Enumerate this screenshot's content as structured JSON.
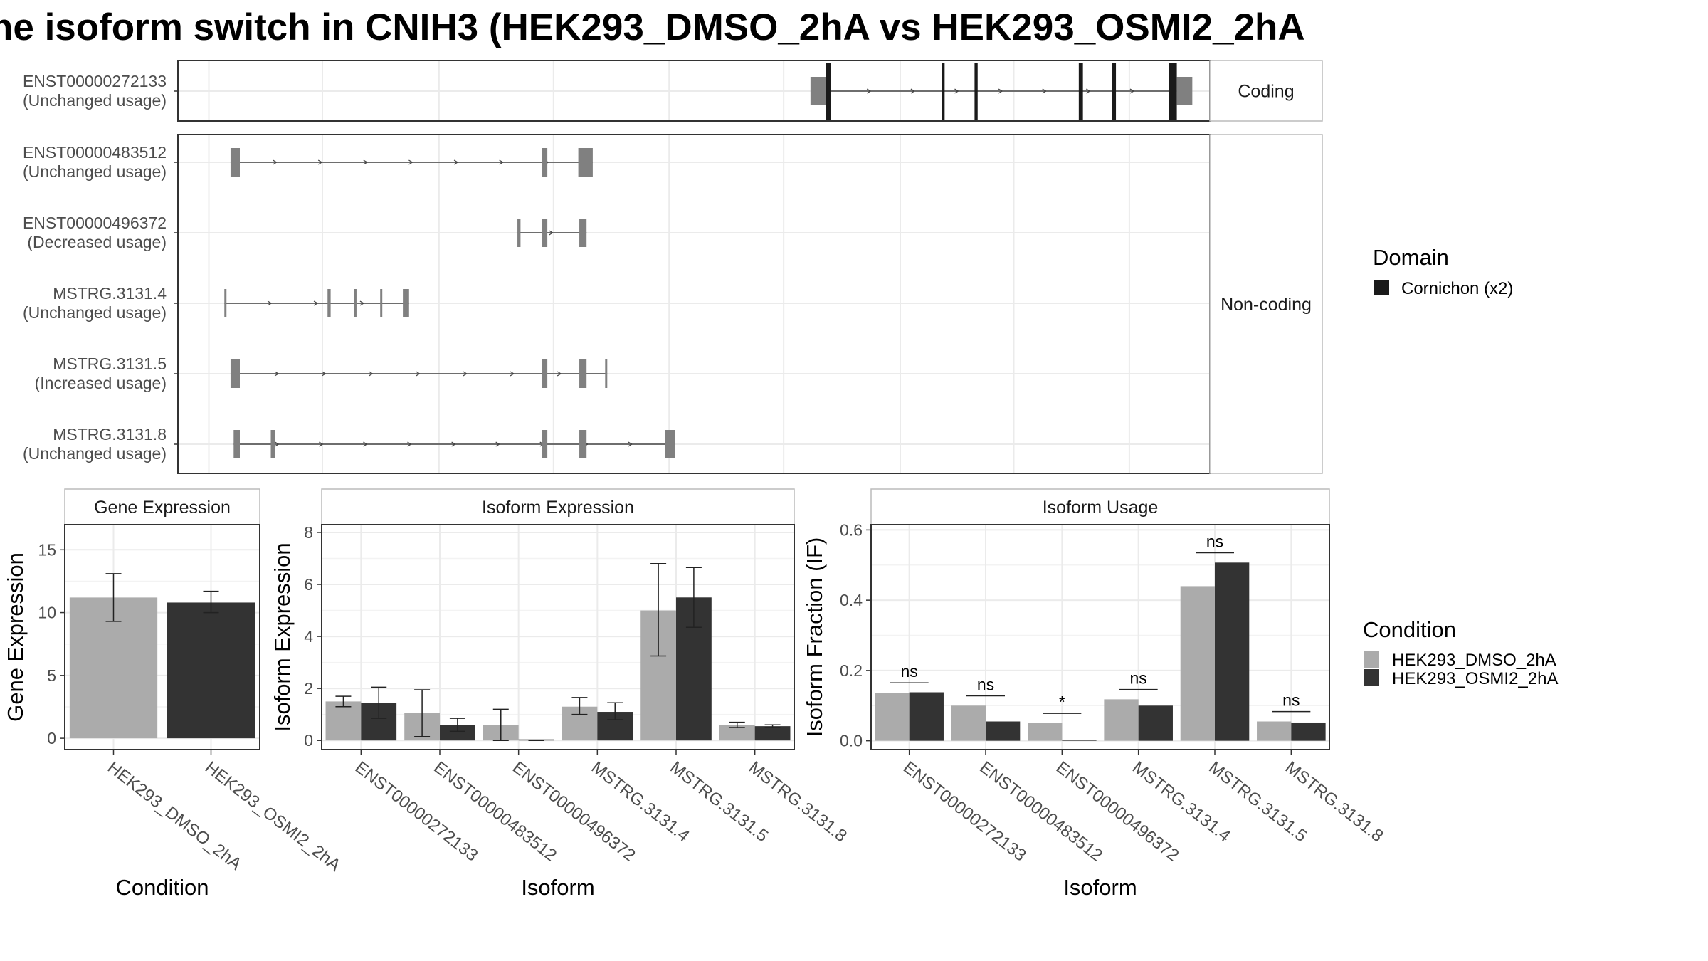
{
  "title": "ne isoform switch in CNIH3 (HEK293_DMSO_2hA vs HEK293_OSMI2_2hA",
  "colors": {
    "dmso": "#ababab",
    "osmi2": "#333333",
    "exon": "#808080",
    "domain": "#1a1a1a",
    "grid": "#ebebeb",
    "border": "#333333",
    "strip_border": "#bbbbbb"
  },
  "legends": {
    "domain": {
      "title": "Domain",
      "items": [
        {
          "label": "Cornichon (x2)",
          "color": "#1a1a1a"
        }
      ]
    },
    "condition": {
      "title": "Condition",
      "items": [
        {
          "label": "HEK293_DMSO_2hA",
          "color": "#ababab"
        },
        {
          "label": "HEK293_OSMI2_2hA",
          "color": "#333333"
        }
      ]
    }
  },
  "chart_data": [
    {
      "type": "gene-structure",
      "x_range": [
        0,
        1
      ],
      "facets": [
        {
          "label": "Coding",
          "tracks": [
            0
          ]
        },
        {
          "label": "Non-coding",
          "tracks": [
            1,
            2,
            3,
            4,
            5
          ]
        }
      ],
      "tracks": [
        {
          "id": "ENST00000272133",
          "status": "(Unchanged usage)",
          "line": [
            0.628,
            0.968
          ],
          "exons": [
            [
              0.613,
              0.628
            ],
            [
              0.628,
              0.633,
              "cds"
            ],
            [
              0.74,
              0.743,
              "cds"
            ],
            [
              0.772,
              0.775,
              "cds"
            ],
            [
              0.873,
              0.877,
              "cds"
            ],
            [
              0.905,
              0.909,
              "cds"
            ],
            [
              0.96,
              0.968,
              "cds"
            ],
            [
              0.968,
              0.983
            ]
          ]
        },
        {
          "id": "ENST00000483512",
          "status": "(Unchanged usage)",
          "line": [
            0.051,
            0.402
          ],
          "exons": [
            [
              0.051,
              0.06
            ],
            [
              0.353,
              0.358
            ],
            [
              0.388,
              0.402
            ]
          ]
        },
        {
          "id": "ENST00000496372",
          "status": "(Decreased usage)",
          "line": [
            0.329,
            0.396
          ],
          "exons": [
            [
              0.329,
              0.332
            ],
            [
              0.353,
              0.358
            ],
            [
              0.389,
              0.396
            ]
          ]
        },
        {
          "id": "MSTRG.3131.4",
          "status": "(Unchanged usage)",
          "line": [
            0.045,
            0.224
          ],
          "exons": [
            [
              0.045,
              0.046
            ],
            [
              0.145,
              0.148
            ],
            [
              0.171,
              0.173
            ],
            [
              0.196,
              0.198
            ],
            [
              0.218,
              0.224
            ]
          ]
        },
        {
          "id": "MSTRG.3131.5",
          "status": "(Increased usage)",
          "line": [
            0.051,
            0.416
          ],
          "exons": [
            [
              0.051,
              0.06
            ],
            [
              0.353,
              0.358
            ],
            [
              0.389,
              0.396
            ],
            [
              0.414,
              0.416
            ]
          ]
        },
        {
          "id": "MSTRG.3131.8",
          "status": "(Unchanged usage)",
          "line": [
            0.054,
            0.482
          ],
          "exons": [
            [
              0.054,
              0.06
            ],
            [
              0.09,
              0.094
            ],
            [
              0.353,
              0.358
            ],
            [
              0.389,
              0.396
            ],
            [
              0.472,
              0.482
            ]
          ]
        }
      ]
    },
    {
      "type": "bar",
      "title": "Gene Expression",
      "xlabel": "Condition",
      "ylabel": "Gene Expression",
      "ylim": [
        -0.9,
        17
      ],
      "yticks": [
        0,
        5,
        10,
        15
      ],
      "categories": [
        "HEK293_DMSO_2hA",
        "HEK293_OSMI2_2hA"
      ],
      "series": [
        {
          "name": "HEK293_DMSO_2hA",
          "values": [
            11.2,
            null
          ],
          "error": [
            [
              9.3,
              13.1
            ],
            null
          ]
        },
        {
          "name": "HEK293_OSMI2_2hA",
          "values": [
            null,
            10.8
          ],
          "error": [
            null,
            [
              10.0,
              11.7
            ]
          ]
        }
      ]
    },
    {
      "type": "bar",
      "title": "Isoform Expression",
      "xlabel": "Isoform",
      "ylabel": "Isoform Expression",
      "ylim": [
        -0.35,
        8.3
      ],
      "yticks": [
        0,
        2,
        4,
        6,
        8
      ],
      "categories": [
        "ENST00000272133",
        "ENST00000483512",
        "ENST00000496372",
        "MSTRG.3131.4",
        "MSTRG.3131.5",
        "MSTRG.3131.8"
      ],
      "series": [
        {
          "name": "HEK293_DMSO_2hA",
          "values": [
            1.5,
            1.05,
            0.6,
            1.3,
            5.0,
            0.6
          ],
          "error": [
            [
              1.3,
              1.7
            ],
            [
              0.15,
              1.95
            ],
            [
              0.0,
              1.2
            ],
            [
              1.0,
              1.65
            ],
            [
              3.25,
              6.8
            ],
            [
              0.5,
              0.7
            ]
          ]
        },
        {
          "name": "HEK293_OSMI2_2hA",
          "values": [
            1.45,
            0.6,
            0.0,
            1.1,
            5.5,
            0.55
          ],
          "error": [
            [
              0.85,
              2.05
            ],
            [
              0.35,
              0.85
            ],
            [
              0.0,
              0.0
            ],
            [
              0.8,
              1.45
            ],
            [
              4.35,
              6.65
            ],
            [
              0.5,
              0.6
            ]
          ]
        }
      ]
    },
    {
      "type": "bar",
      "title": "Isoform Usage",
      "xlabel": "Isoform",
      "ylabel": "Isoform Fraction (IF)",
      "ylim": [
        -0.025,
        0.615
      ],
      "yticks": [
        0.0,
        0.2,
        0.4,
        0.6
      ],
      "categories": [
        "ENST00000272133",
        "ENST00000483512",
        "ENST00000496372",
        "MSTRG.3131.4",
        "MSTRG.3131.5",
        "MSTRG.3131.8"
      ],
      "series": [
        {
          "name": "HEK293_DMSO_2hA",
          "values": [
            0.135,
            0.1,
            0.05,
            0.118,
            0.44,
            0.055
          ]
        },
        {
          "name": "HEK293_OSMI2_2hA",
          "values": [
            0.138,
            0.055,
            0.0,
            0.1,
            0.507,
            0.052
          ]
        }
      ],
      "significance": [
        {
          "label": "ns",
          "y": 0.165
        },
        {
          "label": "ns",
          "y": 0.128
        },
        {
          "label": "*",
          "y": 0.078
        },
        {
          "label": "ns",
          "y": 0.146
        },
        {
          "label": "ns",
          "y": 0.535
        },
        {
          "label": "ns",
          "y": 0.083
        }
      ]
    }
  ]
}
